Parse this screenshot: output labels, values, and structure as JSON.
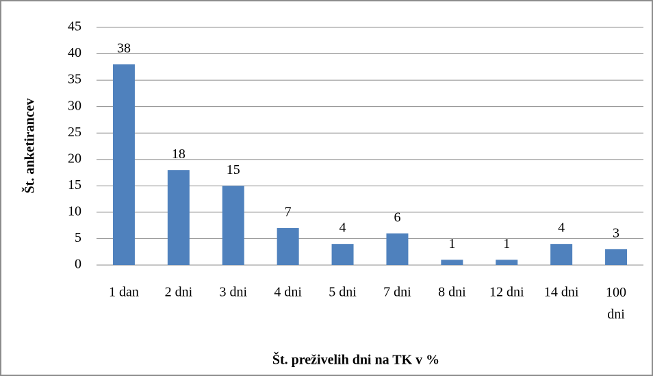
{
  "chart_data": {
    "type": "bar",
    "categories": [
      "1 dan",
      "2 dni",
      "3 dni",
      "4 dni",
      "5 dni",
      "7 dni",
      "8 dni",
      "12 dni",
      "14 dni",
      "100 dni"
    ],
    "values": [
      38,
      18,
      15,
      7,
      4,
      6,
      1,
      1,
      4,
      3
    ],
    "color": "#4f81bd",
    "ylim": [
      0,
      45
    ],
    "yticks": [
      0,
      5,
      10,
      15,
      20,
      25,
      30,
      35,
      40,
      45
    ],
    "grid": true,
    "y_label": "Št. anketirancev",
    "x_label": "Št. preživelih dni na TK v %"
  }
}
